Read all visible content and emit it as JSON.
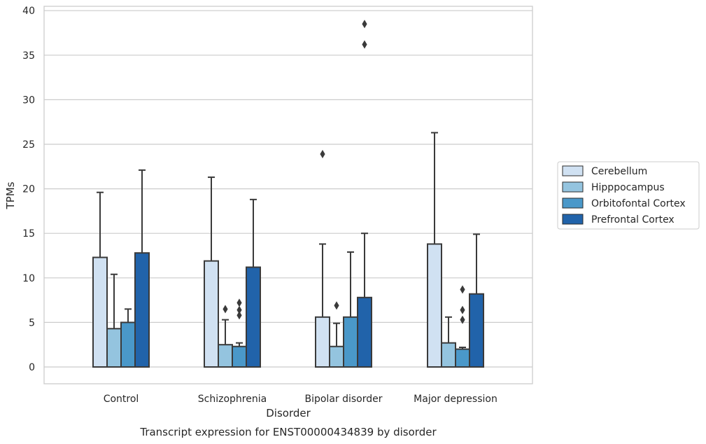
{
  "chart_data": {
    "type": "bar",
    "title": "",
    "caption": "Transcript expression for ENST00000434839 by disorder",
    "xlabel": "Disorder",
    "ylabel": "TPMs",
    "ylim": [
      -1.8,
      40.5
    ],
    "yticks": [
      0,
      5,
      10,
      15,
      20,
      25,
      30,
      35,
      40
    ],
    "grid": true,
    "legend_placement": "right",
    "categories": [
      "Control",
      "Schizophrenia",
      "Bipolar disorder",
      "Major depression"
    ],
    "series": [
      {
        "name": "Cerebellum",
        "color": "#d0e1f2",
        "values": [
          12.3,
          11.9,
          5.6,
          13.8
        ],
        "whisker_high": [
          19.6,
          21.3,
          13.8,
          26.3
        ],
        "outliers": [
          [],
          [],
          [
            23.9
          ],
          []
        ]
      },
      {
        "name": "Hipppocampus",
        "color": "#94c4df",
        "values": [
          4.3,
          2.5,
          2.3,
          2.7
        ],
        "whisker_high": [
          10.4,
          5.3,
          4.9,
          5.6
        ],
        "outliers": [
          [],
          [
            6.5
          ],
          [
            6.9
          ],
          []
        ]
      },
      {
        "name": "Orbitofontal Cortex",
        "color": "#4a98c9",
        "values": [
          5.0,
          2.3,
          5.6,
          2.0
        ],
        "whisker_high": [
          6.5,
          2.7,
          12.9,
          2.2
        ],
        "outliers": [
          [],
          [
            5.8,
            6.4,
            7.2
          ],
          [],
          [
            5.3,
            6.4,
            8.7
          ]
        ]
      },
      {
        "name": "Prefrontal Cortex",
        "color": "#2163aa",
        "values": [
          12.8,
          11.2,
          7.8,
          8.2
        ],
        "whisker_high": [
          22.1,
          18.8,
          15.0,
          14.9
        ],
        "outliers": [
          [],
          [],
          [
            36.2,
            38.5
          ],
          []
        ]
      }
    ]
  }
}
